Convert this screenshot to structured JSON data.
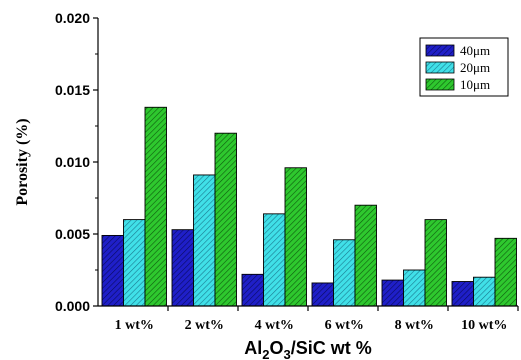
{
  "chart_data": {
    "type": "bar",
    "title": "",
    "xlabel_parts": [
      "Al",
      "2",
      "O",
      "3",
      "/SiC wt %"
    ],
    "ylabel": "Porosity (%)",
    "categories": [
      "1 wt%",
      "2 wt%",
      "4 wt%",
      "6 wt%",
      "8 wt%",
      "10 wt%"
    ],
    "ylim": [
      0,
      0.02
    ],
    "yticks": [
      "0.000",
      "0.005",
      "0.010",
      "0.015",
      "0.020"
    ],
    "yticks_values": [
      0,
      0.005,
      0.01,
      0.015,
      0.02
    ],
    "legend_position": "top-right",
    "grid": false,
    "series": [
      {
        "name": "40μm",
        "color": "#1f1fc8",
        "pattern": "hatch-dark",
        "values": [
          0.0049,
          0.0053,
          0.0022,
          0.0016,
          0.0018,
          0.0017
        ]
      },
      {
        "name": "20μm",
        "color": "#40e0e8",
        "pattern": "hatch-dark",
        "values": [
          0.006,
          0.0091,
          0.0064,
          0.0046,
          0.0025,
          0.002
        ]
      },
      {
        "name": "10μm",
        "color": "#2ec82e",
        "pattern": "hatch-dark",
        "values": [
          0.0138,
          0.012,
          0.0096,
          0.007,
          0.006,
          0.0047
        ]
      }
    ]
  }
}
